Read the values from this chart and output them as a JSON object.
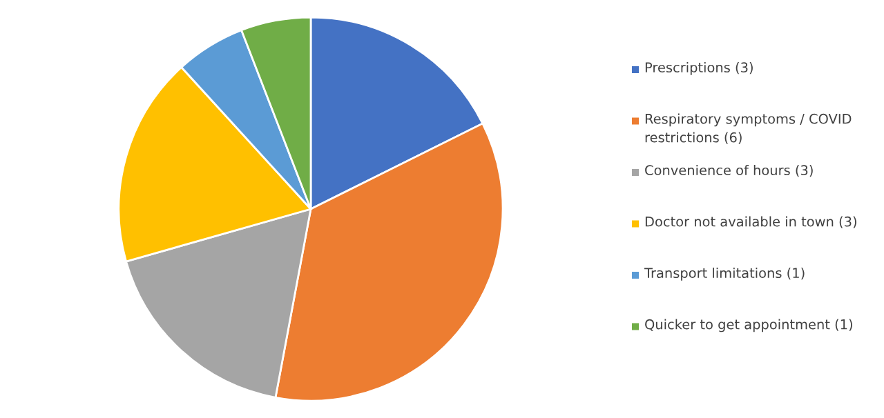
{
  "chart_data": {
    "type": "pie",
    "categories": [
      "Prescriptions (3)",
      "Respiratory symptoms / COVID restrictions (6)",
      "Convenience of hours (3)",
      "Doctor not available in town (3)",
      "Transport limitations (1)",
      "Quicker to get appointment (1)"
    ],
    "values": [
      3,
      6,
      3,
      3,
      1,
      1
    ],
    "colors": [
      "#4472c4",
      "#ed7d31",
      "#a5a5a5",
      "#ffc000",
      "#5b9bd5",
      "#70ad47"
    ],
    "legend": "right"
  }
}
